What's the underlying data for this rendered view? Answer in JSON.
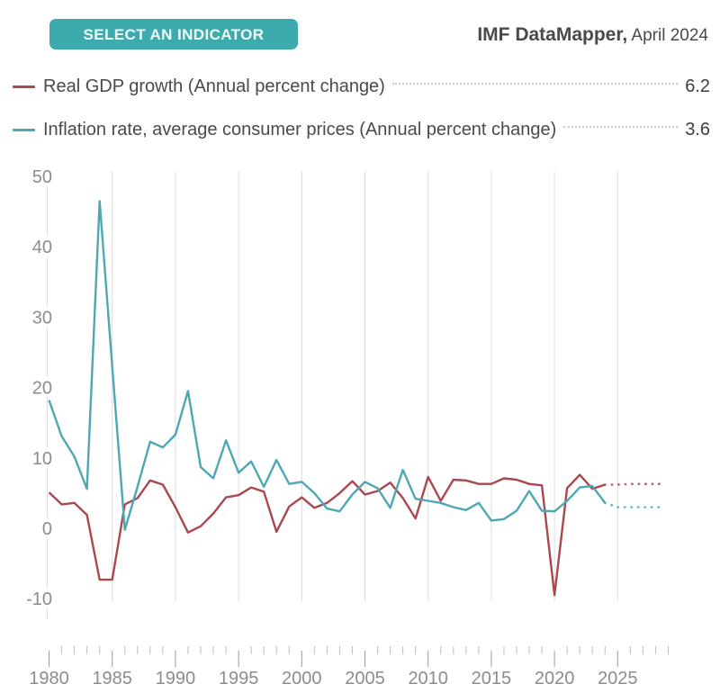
{
  "header": {
    "select_button": "SELECT AN INDICATOR",
    "title_main": "IMF DataMapper,",
    "title_date": " April 2024",
    "button_color": "#3dabad",
    "title_color": "#4a4a4a"
  },
  "legend": [
    {
      "label": "Real GDP growth (Annual percent change)",
      "value": "6.2",
      "color": "#a9484f"
    },
    {
      "label": "Inflation rate, average consumer prices (Annual percent change)",
      "value": "3.6",
      "color": "#4da7b5"
    }
  ],
  "chart_data": {
    "type": "line",
    "title": "",
    "xlabel": "",
    "ylabel": "",
    "x": [
      1980,
      1981,
      1982,
      1983,
      1984,
      1985,
      1986,
      1987,
      1988,
      1989,
      1990,
      1991,
      1992,
      1993,
      1994,
      1995,
      1996,
      1997,
      1998,
      1999,
      2000,
      2001,
      2002,
      2003,
      2004,
      2005,
      2006,
      2007,
      2008,
      2009,
      2010,
      2011,
      2012,
      2013,
      2014,
      2015,
      2016,
      2017,
      2018,
      2019,
      2020,
      2021,
      2022,
      2023,
      2024
    ],
    "series": [
      {
        "name": "Real GDP growth (Annual percent change)",
        "color": "#a9484f",
        "latest_value": 6.2,
        "values": [
          5.1,
          3.4,
          3.6,
          1.9,
          -7.3,
          -7.3,
          3.4,
          4.3,
          6.8,
          6.2,
          3.0,
          -0.6,
          0.3,
          2.1,
          4.4,
          4.7,
          5.8,
          5.2,
          -0.5,
          3.1,
          4.4,
          2.9,
          3.6,
          5.0,
          6.7,
          4.8,
          5.3,
          6.5,
          4.3,
          1.4,
          7.3,
          3.9,
          6.9,
          6.8,
          6.3,
          6.3,
          7.1,
          6.9,
          6.3,
          6.1,
          -9.5,
          5.7,
          7.6,
          5.6,
          6.2
        ],
        "forecast_x": [
          2024,
          2025,
          2026,
          2027,
          2028,
          2028.5
        ],
        "forecast_values": [
          6.2,
          6.2,
          6.3,
          6.3,
          6.3,
          6.3
        ]
      },
      {
        "name": "Inflation rate, average consumer prices (Annual percent change)",
        "color": "#4da7b5",
        "latest_value": 3.6,
        "values": [
          18.2,
          13.1,
          10.2,
          5.6,
          46.5,
          23.0,
          -0.2,
          5.9,
          12.3,
          11.5,
          13.3,
          19.5,
          8.7,
          7.1,
          12.5,
          7.9,
          9.5,
          5.9,
          9.7,
          6.3,
          6.6,
          5.0,
          2.8,
          2.4,
          4.8,
          6.6,
          5.7,
          2.9,
          8.3,
          4.2,
          3.9,
          3.6,
          3.0,
          2.6,
          3.6,
          1.1,
          1.3,
          2.5,
          5.3,
          2.5,
          2.4,
          3.9,
          5.8,
          6.0,
          3.6
        ],
        "forecast_x": [
          2024,
          2025,
          2026,
          2027,
          2028,
          2028.5
        ],
        "forecast_values": [
          3.6,
          3.0,
          3.0,
          3.0,
          3.0,
          3.0
        ]
      }
    ],
    "ylim": [
      -10,
      50
    ],
    "yticks": [
      50,
      40,
      30,
      20,
      10,
      0,
      -10
    ],
    "xtick_labels": [
      "1980",
      "1985",
      "1990",
      "1995",
      "2000",
      "2005",
      "2010",
      "2015",
      "2020",
      "2025"
    ],
    "x_axis_end": 2029,
    "grid": "vertical-only",
    "legend_position": "top",
    "gridline_color": "#dedede",
    "axis_label_color": "#8c8c8c"
  }
}
